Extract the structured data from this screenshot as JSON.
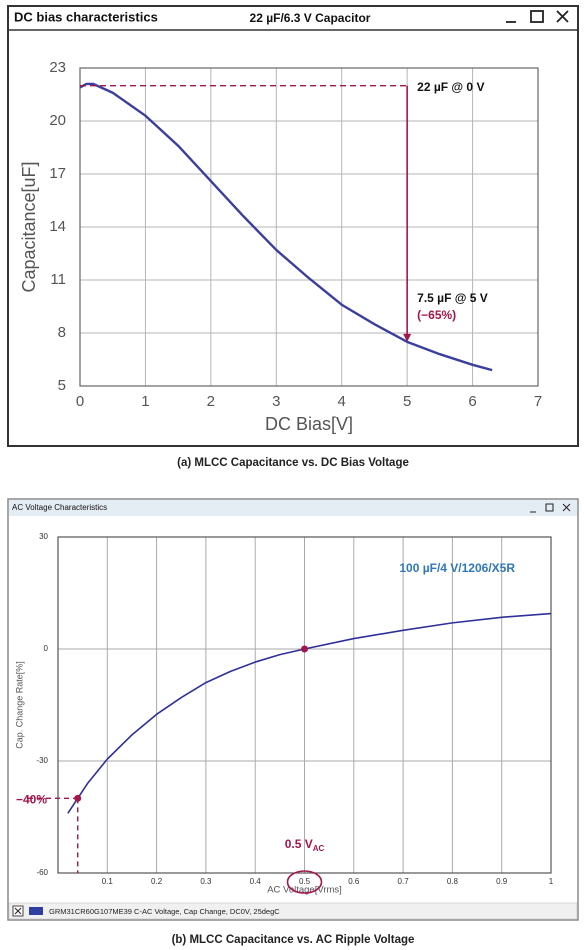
{
  "chart_data": [
    {
      "type": "line",
      "window_title": "DC bias characteristics",
      "title": "22 µF/6.3 V Capacitor",
      "caption": "(a) MLCC Capacitance vs. DC Bias Voltage",
      "x_label": "DC Bias[V]",
      "y_label": "Capacitance[uF]",
      "xlim": [
        0,
        7
      ],
      "xticks": [
        0,
        1,
        2,
        3,
        4,
        5,
        6,
        7
      ],
      "ylim": [
        5,
        23
      ],
      "yticks": [
        5,
        8,
        11,
        14,
        17,
        20,
        23
      ],
      "grid": true,
      "x": [
        0,
        0.1,
        0.2,
        0.5,
        1,
        1.5,
        2,
        2.5,
        3,
        3.5,
        4,
        4.5,
        5,
        5.5,
        6,
        6.3
      ],
      "series": [
        {
          "name": "Capacitance",
          "color": "#3b3f9e",
          "values": [
            21.9,
            22.1,
            22.1,
            21.6,
            20.3,
            18.6,
            16.6,
            14.6,
            12.7,
            11.1,
            9.6,
            8.5,
            7.5,
            6.8,
            6.2,
            5.9
          ]
        }
      ],
      "annotation_color": "#a3164c",
      "markers": [
        {
          "x": 0,
          "y": 22,
          "label": "22 µF @ 0 V"
        },
        {
          "x": 5,
          "y": 7.5,
          "label": "7.5 µF @ 5 V",
          "note": "(−65%)"
        }
      ]
    },
    {
      "type": "line",
      "window_title": "AC Voltage Characteristics",
      "title": "100 µF/4 V/1206/X5R",
      "caption": "(b) MLCC Capacitance vs. AC Ripple Voltage",
      "footer": "GRM31CR60G107ME39   C-AC Voltage, Cap Change, DC0V, 25degC",
      "x_label": "AC Voltage[Vrms]",
      "y_label": "Cap. Change Rate[%]",
      "xlim": [
        0,
        1
      ],
      "xticks": [
        0.1,
        0.2,
        0.3,
        0.4,
        0.5,
        0.6,
        0.7,
        0.8,
        0.9,
        1
      ],
      "ylim": [
        -60,
        30
      ],
      "yticks": [
        -60,
        -30,
        0,
        30
      ],
      "grid": true,
      "x": [
        0.02,
        0.04,
        0.06,
        0.1,
        0.15,
        0.2,
        0.25,
        0.3,
        0.35,
        0.4,
        0.45,
        0.5,
        0.6,
        0.7,
        0.8,
        0.9,
        1
      ],
      "series": [
        {
          "name": "Cap Change",
          "color": "#30309a",
          "values": [
            -44,
            -40,
            -36,
            -29.5,
            -23,
            -17.5,
            -13,
            -9,
            -6,
            -3.5,
            -1.5,
            0,
            2.8,
            5,
            7,
            8.5,
            9.5
          ]
        }
      ],
      "annotation_color": "#a3164c",
      "title_color": "#2f78b8",
      "markers": [
        {
          "x": 0.04,
          "y": -40,
          "label": "−40%"
        },
        {
          "x": 0.5,
          "y": 0,
          "label": "0.5 V",
          "label_sub": "AC"
        }
      ]
    }
  ]
}
